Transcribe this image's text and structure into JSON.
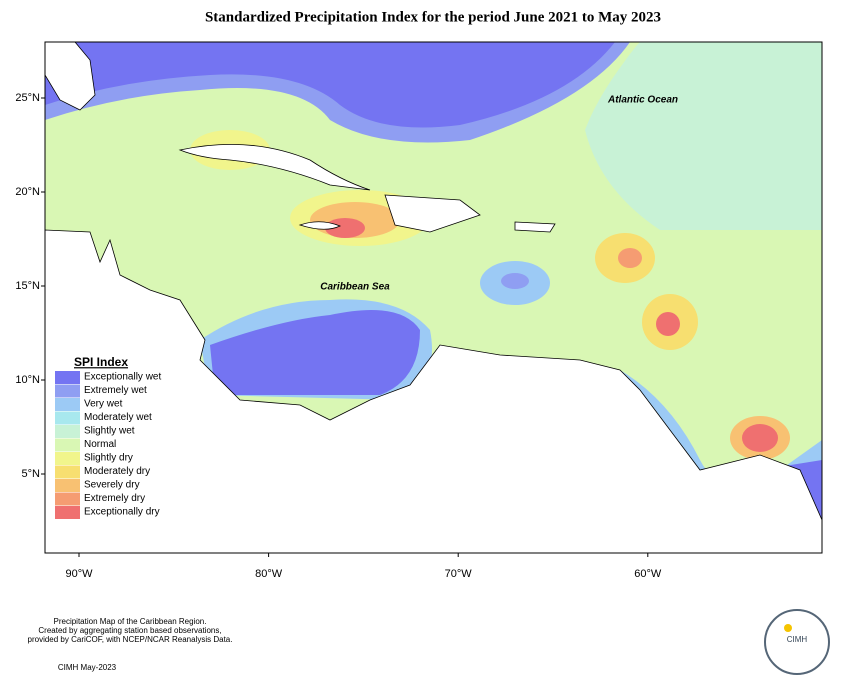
{
  "map": {
    "title": "Standardized Precipitation Index for the period June 2021 to May 2023",
    "ocean_labels": [
      "Atlantic Ocean",
      "Caribbean Sea"
    ],
    "lat_ticks": [
      "25°N",
      "20°N",
      "15°N",
      "10°N",
      "5°N"
    ],
    "lon_ticks": [
      "90°W",
      "80°W",
      "70°W",
      "60°W"
    ],
    "legend": {
      "title": "SPI Index",
      "items": [
        {
          "label": "Exceptionally wet",
          "color": "#7474f2"
        },
        {
          "label": "Extremely wet",
          "color": "#8f9ef2"
        },
        {
          "label": "Very wet",
          "color": "#9ccaf5"
        },
        {
          "label": "Moderately wet",
          "color": "#a8e8ee"
        },
        {
          "label": "Slightly wet",
          "color": "#c8f2d6"
        },
        {
          "label": "Normal",
          "color": "#d9f7b4"
        },
        {
          "label": "Slightly dry",
          "color": "#f1f58c"
        },
        {
          "label": "Moderately dry",
          "color": "#f7df70"
        },
        {
          "label": "Severely dry",
          "color": "#f8c172"
        },
        {
          "label": "Extremely dry",
          "color": "#f59c72"
        },
        {
          "label": "Exceptionally dry",
          "color": "#ef7070"
        }
      ]
    },
    "footer": [
      "Precipitation Map of the Caribbean Region.",
      "Created by aggregating station based observations,",
      "provided by CariCOF, with NCEP/NCAR Reanalysis Data.",
      "CIMH May-2023"
    ],
    "logo": "CIMH"
  }
}
